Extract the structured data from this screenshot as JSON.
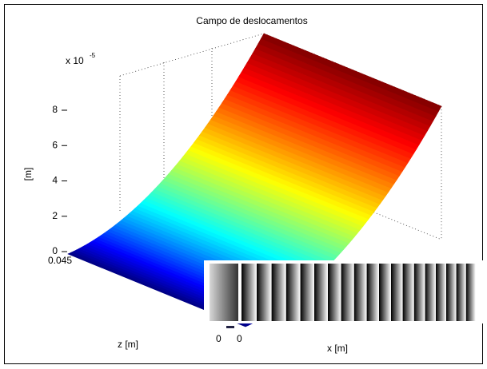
{
  "chart_data": {
    "type": "surface",
    "title": "Campo de deslocamentos",
    "y_label": "[m]",
    "x_label": "x [m]",
    "z_label": "z [m]",
    "scale_label": "x 10",
    "scale_exponent": "-5",
    "ylim": [
      0,
      8
    ],
    "yticks": [
      0,
      2,
      4,
      6,
      8
    ],
    "zticks": [
      0,
      0.045
    ],
    "xticks": [
      0
    ],
    "colormap": "jet",
    "grid": true
  }
}
